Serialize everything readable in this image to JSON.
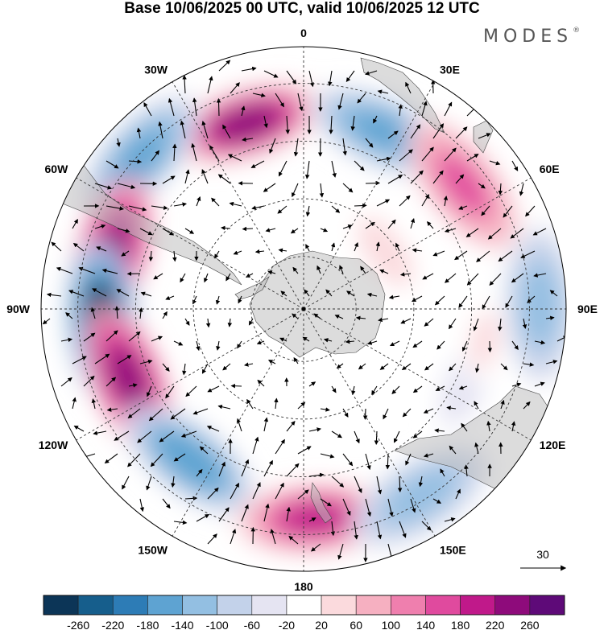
{
  "title": "Base 10/06/2025 00 UTC, valid 10/06/2025 12 UTC",
  "brand": {
    "name": "MODES",
    "mark": "®"
  },
  "map": {
    "projection": "polar-stereographic-south",
    "longitude_labels": [
      "0",
      "30E",
      "60E",
      "90E",
      "120E",
      "150E",
      "180",
      "150W",
      "120W",
      "90W",
      "60W",
      "30W"
    ],
    "vector_reference": {
      "label": "30",
      "icon": "arrow-right-icon"
    },
    "anomaly_centers": [
      {
        "lon": -17,
        "r": 0.74,
        "value": 220
      },
      {
        "lon": 24,
        "r": 0.74,
        "value": -160
      },
      {
        "lon": 52,
        "r": 0.77,
        "value": 140
      },
      {
        "lon": 89,
        "r": 0.9,
        "value": -140
      },
      {
        "lon": -47,
        "r": 0.85,
        "value": -160
      },
      {
        "lon": -74,
        "r": 0.76,
        "value": 240
      },
      {
        "lon": -93,
        "r": 0.77,
        "value": -270
      },
      {
        "lon": -112,
        "r": 0.72,
        "value": 240
      },
      {
        "lon": -143,
        "r": 0.72,
        "value": -180
      },
      {
        "lon": 177,
        "r": 0.8,
        "value": 200
      },
      {
        "lon": 148,
        "r": 0.84,
        "value": -140
      },
      {
        "lon": 115,
        "r": 0.68,
        "value": -60
      },
      {
        "lon": 100,
        "r": 0.7,
        "value": 40
      },
      {
        "lon": 55,
        "r": 0.38,
        "value": 50
      }
    ]
  },
  "colorbar": {
    "colors": [
      "#0c3557",
      "#165e8c",
      "#2d7cb6",
      "#5ea3d2",
      "#93bfe2",
      "#c3d2ea",
      "#e5e4f2",
      "#ffffff",
      "#fbdadd",
      "#f6b0c1",
      "#ef7fae",
      "#e04a9e",
      "#c0198a",
      "#8e0b7b",
      "#5e0a78"
    ],
    "ticks": [
      "-260",
      "-220",
      "-180",
      "-140",
      "-100",
      "-60",
      "-20",
      "20",
      "60",
      "100",
      "140",
      "180",
      "220",
      "260"
    ]
  }
}
